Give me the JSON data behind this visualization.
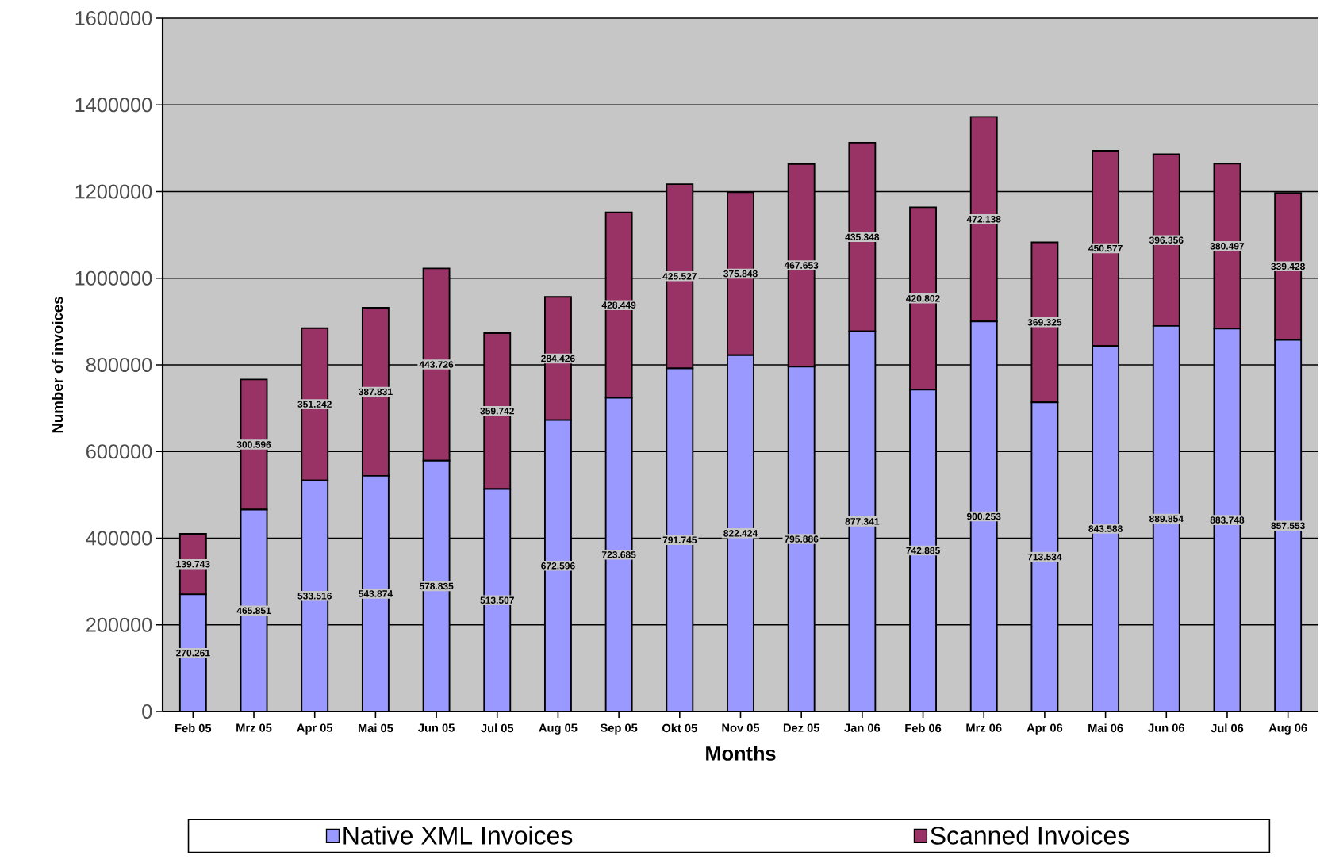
{
  "chart_data": {
    "type": "bar",
    "stacked": true,
    "xlabel": "Months",
    "ylabel": "Number of invoices",
    "categories": [
      "Feb 05",
      "Mrz 05",
      "Apr 05",
      "Mai 05",
      "Jun 05",
      "Jul 05",
      "Aug 05",
      "Sep 05",
      "Okt 05",
      "Nov 05",
      "Dez 05",
      "Jan 06",
      "Feb 06",
      "Mrz 06",
      "Apr 06",
      "Mai 06",
      "Jun 06",
      "Jul 06",
      "Aug 06"
    ],
    "series": [
      {
        "name": "Native XML Invoices",
        "color": "#9999ff",
        "values": [
          270261,
          465851,
          533516,
          543874,
          578835,
          513507,
          672596,
          723685,
          791745,
          822424,
          795886,
          877341,
          742885,
          900253,
          713534,
          843588,
          889854,
          883748,
          857553
        ],
        "value_labels": [
          "270.261",
          "465.851",
          "533.516",
          "543.874",
          "578.835",
          "513.507",
          "672.596",
          "723.685",
          "791.745",
          "822.424",
          "795.886",
          "877.341",
          "742.885",
          "900.253",
          "713.534",
          "843.588",
          "889.854",
          "883.748",
          "857.553"
        ]
      },
      {
        "name": "Scanned Invoices",
        "color": "#993366",
        "values": [
          139743,
          300596,
          351242,
          387831,
          443726,
          359742,
          284426,
          428449,
          425527,
          375848,
          467653,
          435348,
          420802,
          472138,
          369325,
          450577,
          396356,
          380497,
          339428
        ],
        "value_labels": [
          "139.743",
          "300.596",
          "351.242",
          "387.831",
          "443.726",
          "359.742",
          "284.426",
          "428.449",
          "425.527",
          "375.848",
          "467.653",
          "435.348",
          "420.802",
          "472.138",
          "369.325",
          "450.577",
          "396.356",
          "380.497",
          "339.428"
        ]
      }
    ],
    "ylim": [
      0,
      1600000
    ],
    "yticks": [
      0,
      200000,
      400000,
      600000,
      800000,
      1000000,
      1200000,
      1400000,
      1600000
    ],
    "grid": "y",
    "legend": "bottom"
  }
}
